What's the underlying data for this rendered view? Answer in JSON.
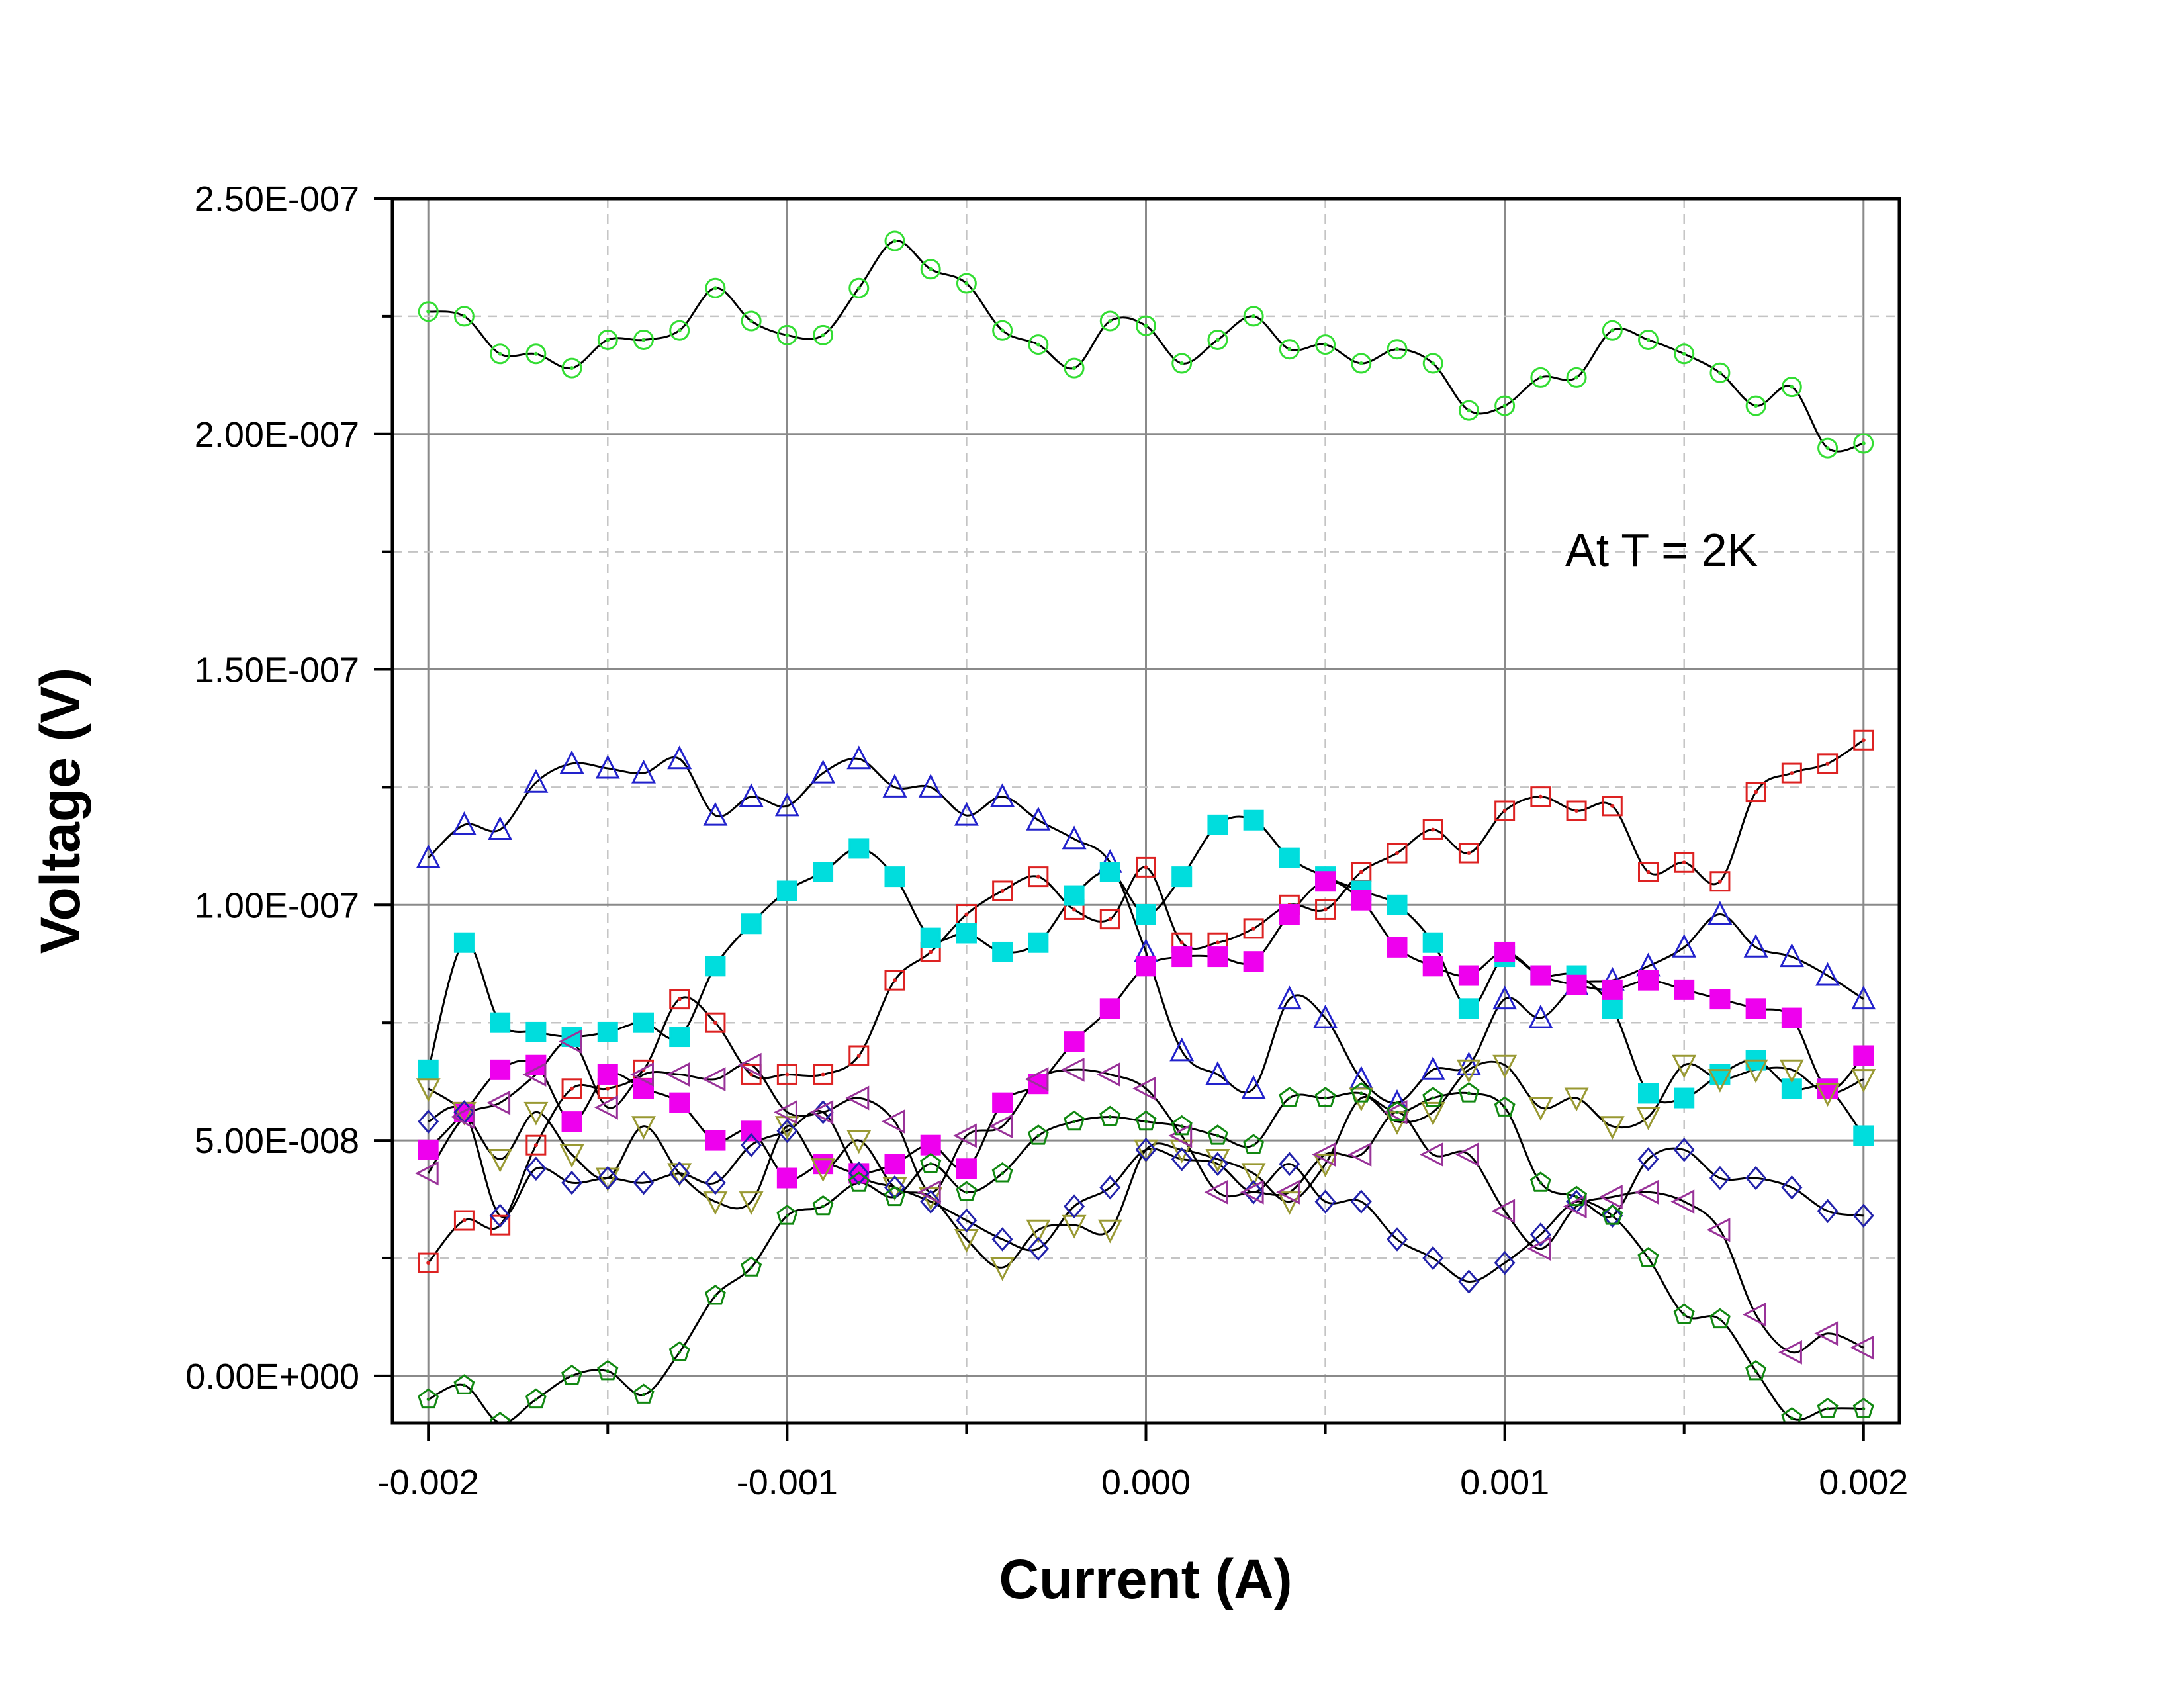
{
  "chart_data": {
    "type": "line",
    "title": "",
    "xlabel": "Current (A)",
    "ylabel": "Voltage (V)",
    "xlim": [
      -0.0021,
      0.0021
    ],
    "ylim": [
      -1e-08,
      2.5e-07
    ],
    "x_ticks": [
      -0.002,
      -0.001,
      0.0,
      0.001,
      0.002
    ],
    "x_tick_labels": [
      "-0.002",
      "-0.001",
      "0.000",
      "0.001",
      "0.002"
    ],
    "y_ticks": [
      0.0,
      5e-08,
      1e-07,
      1.5e-07,
      2e-07,
      2.5e-07
    ],
    "y_tick_labels": [
      "0.00E+000",
      "5.00E-008",
      "1.00E-007",
      "1.50E-007",
      "2.00E-007",
      "2.50E-007"
    ],
    "grid": true,
    "annotation": "At T = 2K",
    "x": [
      -0.002,
      -0.0019,
      -0.0018,
      -0.0017,
      -0.0016,
      -0.0015,
      -0.0014,
      -0.0013,
      -0.0012,
      -0.0011,
      -0.001,
      -0.0009,
      -0.0008,
      -0.0007,
      -0.0006,
      -0.0005,
      -0.0004,
      -0.0003,
      -0.0002,
      -0.0001,
      0.0,
      0.0001,
      0.0002,
      0.0003,
      0.0004,
      0.0005,
      0.0006,
      0.0007,
      0.0008,
      0.0009,
      0.001,
      0.0011,
      0.0012,
      0.0013,
      0.0014,
      0.0015,
      0.0016,
      0.0017,
      0.0018,
      0.0019,
      0.002
    ],
    "series": [
      {
        "marker": "circle",
        "color": "#33dd33",
        "filled": false,
        "values": [
          2.26e-07,
          2.25e-07,
          2.17e-07,
          2.17e-07,
          2.14e-07,
          2.2e-07,
          2.2e-07,
          2.22e-07,
          2.31e-07,
          2.24e-07,
          2.21e-07,
          2.21e-07,
          2.31e-07,
          2.41e-07,
          2.35e-07,
          2.32e-07,
          2.22e-07,
          2.19e-07,
          2.14e-07,
          2.24e-07,
          2.23e-07,
          2.15e-07,
          2.2e-07,
          2.25e-07,
          2.18e-07,
          2.19e-07,
          2.15e-07,
          2.18e-07,
          2.15e-07,
          2.05e-07,
          2.06e-07,
          2.12e-07,
          2.12e-07,
          2.22e-07,
          2.2e-07,
          2.17e-07,
          2.13e-07,
          2.06e-07,
          2.1e-07,
          1.97e-07,
          1.98e-07
        ]
      },
      {
        "marker": "triangle-up",
        "color": "#2222cc",
        "filled": false,
        "values": [
          1.1e-07,
          1.17e-07,
          1.16e-07,
          1.26e-07,
          1.3e-07,
          1.29e-07,
          1.28e-07,
          1.31e-07,
          1.19e-07,
          1.23e-07,
          1.21e-07,
          1.28e-07,
          1.31e-07,
          1.25e-07,
          1.25e-07,
          1.19e-07,
          1.23e-07,
          1.18e-07,
          1.14e-07,
          1.09e-07,
          9e-08,
          6.9e-08,
          6.4e-08,
          6.1e-08,
          8e-08,
          7.6e-08,
          6.3e-08,
          5.8e-08,
          6.5e-08,
          6.6e-08,
          8e-08,
          7.6e-08,
          8.3e-08,
          8.4e-08,
          8.7e-08,
          9.1e-08,
          9.8e-08,
          9.1e-08,
          8.9e-08,
          8.5e-08,
          8e-08
        ]
      },
      {
        "marker": "square",
        "color": "#dd2222",
        "filled": false,
        "values": [
          2.4e-08,
          3.3e-08,
          3.2e-08,
          4.9e-08,
          6.1e-08,
          6.1e-08,
          6.5e-08,
          8e-08,
          7.5e-08,
          6.4e-08,
          6.4e-08,
          6.4e-08,
          6.8e-08,
          8.4e-08,
          9e-08,
          9.8e-08,
          1.03e-07,
          1.06e-07,
          9.9e-08,
          9.7e-08,
          1.08e-07,
          9.2e-08,
          9.2e-08,
          9.5e-08,
          1e-07,
          9.9e-08,
          1.07e-07,
          1.11e-07,
          1.16e-07,
          1.11e-07,
          1.2e-07,
          1.23e-07,
          1.2e-07,
          1.21e-07,
          1.07e-07,
          1.09e-07,
          1.05e-07,
          1.24e-07,
          1.28e-07,
          1.3e-07,
          1.35e-07
        ]
      },
      {
        "marker": "square",
        "color": "#00dddd",
        "filled": true,
        "values": [
          6.5e-08,
          9.2e-08,
          7.5e-08,
          7.3e-08,
          7.2e-08,
          7.3e-08,
          7.5e-08,
          7.2e-08,
          8.7e-08,
          9.6e-08,
          1.03e-07,
          1.07e-07,
          1.12e-07,
          1.06e-07,
          9.3e-08,
          9.4e-08,
          9e-08,
          9.2e-08,
          1.02e-07,
          1.07e-07,
          9.8e-08,
          1.06e-07,
          1.17e-07,
          1.18e-07,
          1.1e-07,
          1.06e-07,
          1.03e-07,
          1e-07,
          9.2e-08,
          7.8e-08,
          8.9e-08,
          8.5e-08,
          8.5e-08,
          7.8e-08,
          6e-08,
          5.9e-08,
          6.4e-08,
          6.7e-08,
          6.1e-08,
          6.1e-08,
          5.1e-08
        ]
      },
      {
        "marker": "square",
        "color": "#ee00ee",
        "filled": true,
        "values": [
          4.8e-08,
          5.6e-08,
          6.5e-08,
          6.6e-08,
          5.4e-08,
          6.4e-08,
          6.1e-08,
          5.8e-08,
          5e-08,
          5.2e-08,
          4.2e-08,
          4.5e-08,
          4.3e-08,
          4.5e-08,
          4.9e-08,
          4.4e-08,
          5.8e-08,
          6.2e-08,
          7.1e-08,
          7.8e-08,
          8.7e-08,
          8.9e-08,
          8.9e-08,
          8.8e-08,
          9.8e-08,
          1.05e-07,
          1.01e-07,
          9.1e-08,
          8.7e-08,
          8.5e-08,
          9e-08,
          8.5e-08,
          8.3e-08,
          8.2e-08,
          8.4e-08,
          8.2e-08,
          8e-08,
          7.8e-08,
          7.6e-08,
          6.1e-08,
          6.8e-08
        ]
      },
      {
        "marker": "triangle-down",
        "color": "#999933",
        "filled": false,
        "values": [
          6.1e-08,
          5.6e-08,
          4.6e-08,
          5.6e-08,
          4.7e-08,
          4.2e-08,
          5.3e-08,
          4.3e-08,
          3.7e-08,
          3.7e-08,
          5.3e-08,
          4.4e-08,
          5e-08,
          4e-08,
          3.8e-08,
          2.9e-08,
          2.3e-08,
          3.1e-08,
          3.2e-08,
          3.1e-08,
          4.8e-08,
          4.8e-08,
          4.6e-08,
          4.3e-08,
          3.7e-08,
          4.5e-08,
          5.9e-08,
          5.4e-08,
          5.6e-08,
          6.5e-08,
          6.6e-08,
          5.7e-08,
          5.9e-08,
          5.3e-08,
          5.5e-08,
          6.6e-08,
          6.3e-08,
          6.5e-08,
          6.5e-08,
          6e-08,
          6.3e-08
        ]
      },
      {
        "marker": "diamond",
        "color": "#2222aa",
        "filled": false,
        "values": [
          5.4e-08,
          5.6e-08,
          3.4e-08,
          4.4e-08,
          4.1e-08,
          4.2e-08,
          4.1e-08,
          4.3e-08,
          4.1e-08,
          4.9e-08,
          5.2e-08,
          5.6e-08,
          4.3e-08,
          4e-08,
          3.7e-08,
          3.3e-08,
          2.9e-08,
          2.7e-08,
          3.6e-08,
          4e-08,
          4.8e-08,
          4.6e-08,
          4.5e-08,
          3.9e-08,
          4.5e-08,
          3.7e-08,
          3.7e-08,
          2.9e-08,
          2.5e-08,
          2e-08,
          2.4e-08,
          3e-08,
          3.7e-08,
          3.4e-08,
          4.6e-08,
          4.8e-08,
          4.2e-08,
          4.2e-08,
          4e-08,
          3.5e-08,
          3.4e-08
        ]
      },
      {
        "marker": "triangle-left",
        "color": "#993399",
        "filled": false,
        "values": [
          4.3e-08,
          5.5e-08,
          5.8e-08,
          6.4e-08,
          7.1e-08,
          5.7e-08,
          6.4e-08,
          6.4e-08,
          6.3e-08,
          6.6e-08,
          5.6e-08,
          5.6e-08,
          5.9e-08,
          5.4e-08,
          3.9e-08,
          5.1e-08,
          5.3e-08,
          6.3e-08,
          6.5e-08,
          6.4e-08,
          6.1e-08,
          5.1e-08,
          3.9e-08,
          3.9e-08,
          3.9e-08,
          4.7e-08,
          4.7e-08,
          5.6e-08,
          4.7e-08,
          4.7e-08,
          3.5e-08,
          2.7e-08,
          3.6e-08,
          3.8e-08,
          3.9e-08,
          3.7e-08,
          3.1e-08,
          1.3e-08,
          5e-09,
          9e-09,
          6e-09
        ]
      },
      {
        "marker": "pentagon",
        "color": "#118811",
        "filled": false,
        "values": [
          -5e-09,
          -2e-09,
          -1e-08,
          -5e-09,
          0.0,
          1e-09,
          -4e-09,
          5e-09,
          1.7e-08,
          2.3e-08,
          3.4e-08,
          3.6e-08,
          4.1e-08,
          3.8e-08,
          4.5e-08,
          3.9e-08,
          4.3e-08,
          5.1e-08,
          5.4e-08,
          5.5e-08,
          5.4e-08,
          5.3e-08,
          5.1e-08,
          4.9e-08,
          5.9e-08,
          5.9e-08,
          6e-08,
          5.6e-08,
          5.9e-08,
          6e-08,
          5.7e-08,
          4.1e-08,
          3.8e-08,
          3.4e-08,
          2.5e-08,
          1.3e-08,
          1.2e-08,
          1e-09,
          -9e-09,
          -7e-09,
          -7e-09
        ]
      }
    ]
  }
}
